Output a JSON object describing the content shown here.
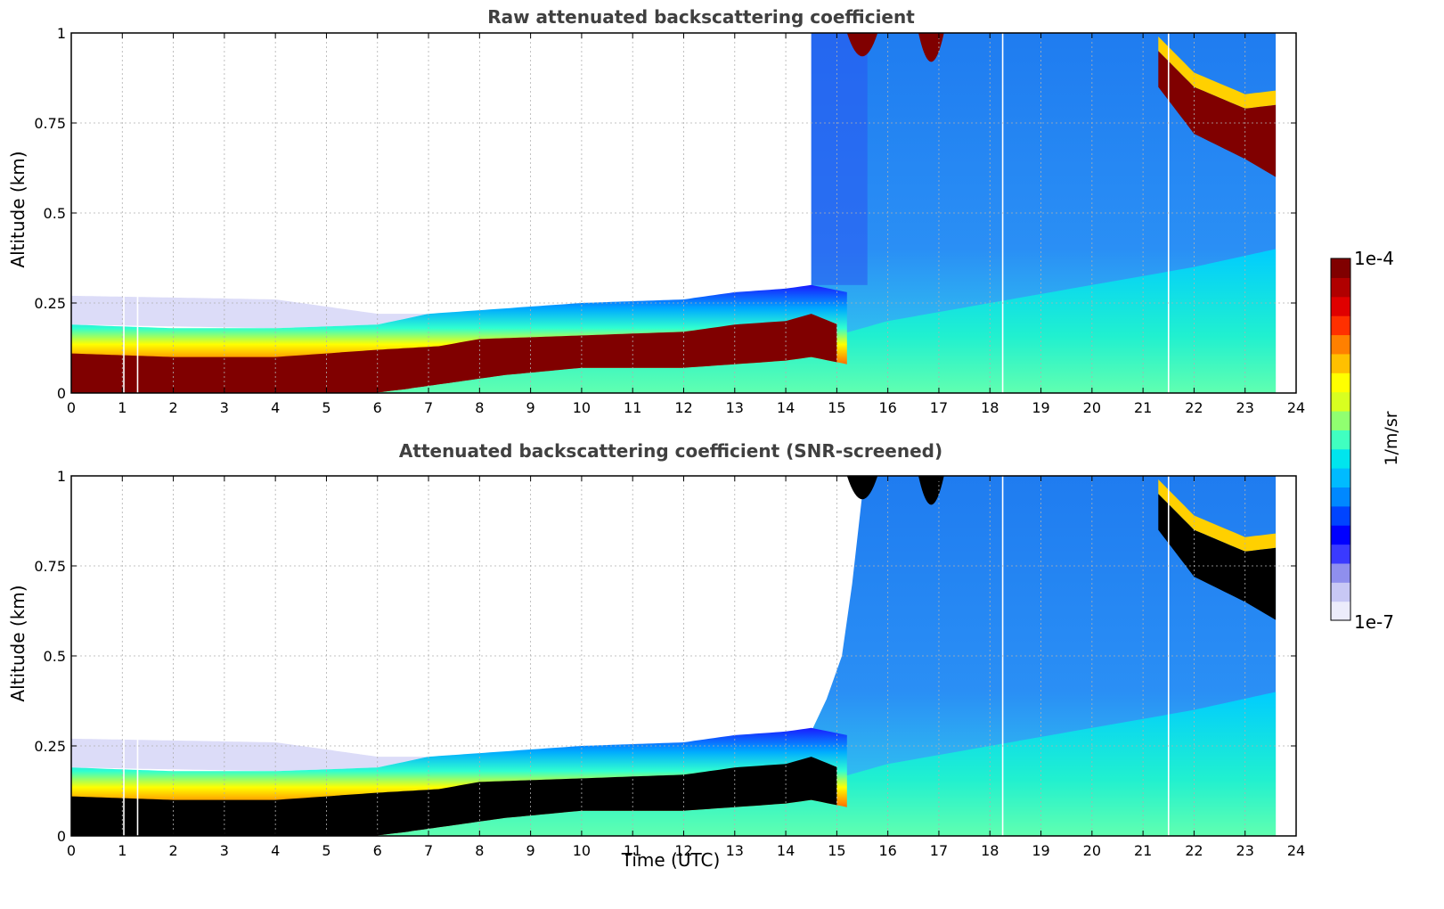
{
  "chart_data": [
    {
      "type": "heatmap",
      "title": "Raw attenuated backscattering coefficient",
      "xlabel": "",
      "ylabel": "Altitude (km)",
      "xlim": [
        0,
        24
      ],
      "ylim": [
        0,
        1
      ],
      "x_ticks": [
        "0",
        "1",
        "2",
        "3",
        "4",
        "5",
        "6",
        "7",
        "8",
        "9",
        "10",
        "11",
        "12",
        "13",
        "14",
        "15",
        "16",
        "17",
        "18",
        "19",
        "20",
        "21",
        "22",
        "23",
        "24"
      ],
      "y_ticks": [
        "0",
        "0.25",
        "0.5",
        "0.75",
        "1"
      ],
      "y_tick_values": [
        0,
        0.25,
        0.5,
        0.75,
        1
      ],
      "grid": true,
      "screened": false,
      "data_end_time": 23.6,
      "layer_top_km": [
        [
          0,
          0.19
        ],
        [
          2,
          0.18
        ],
        [
          4,
          0.18
        ],
        [
          6,
          0.19
        ],
        [
          7,
          0.22
        ],
        [
          8,
          0.23
        ],
        [
          10,
          0.25
        ],
        [
          12,
          0.26
        ],
        [
          13,
          0.28
        ],
        [
          14,
          0.29
        ],
        [
          14.5,
          0.3
        ],
        [
          15.2,
          0.28
        ]
      ],
      "layer_core_top_km": [
        [
          0,
          0.11
        ],
        [
          2,
          0.1
        ],
        [
          4,
          0.1
        ],
        [
          6,
          0.12
        ],
        [
          7.2,
          0.13
        ],
        [
          8,
          0.15
        ],
        [
          10,
          0.16
        ],
        [
          12,
          0.17
        ],
        [
          13,
          0.19
        ],
        [
          14,
          0.2
        ],
        [
          14.5,
          0.22
        ],
        [
          15.2,
          0.18
        ]
      ],
      "layer_core_bottom_km": [
        [
          0,
          0
        ],
        [
          5.9,
          0
        ],
        [
          6.5,
          0.01
        ],
        [
          7.5,
          0.03
        ],
        [
          8.5,
          0.05
        ],
        [
          10,
          0.07
        ],
        [
          12,
          0.07
        ],
        [
          13,
          0.08
        ],
        [
          14,
          0.09
        ],
        [
          14.5,
          0.1
        ],
        [
          15.2,
          0.08
        ]
      ],
      "upper_cloud": {
        "start": 21.3,
        "end": 23.6,
        "top_km": [
          [
            21.3,
            0.95
          ],
          [
            22,
            0.85
          ],
          [
            23,
            0.79
          ],
          [
            23.6,
            0.8
          ]
        ],
        "bottom_km": [
          [
            21.3,
            0.85
          ],
          [
            22,
            0.72
          ],
          [
            23,
            0.65
          ],
          [
            23.6,
            0.6
          ]
        ]
      },
      "gaps_utc": [
        1.03,
        1.3,
        18.25,
        21.5
      ]
    },
    {
      "type": "heatmap",
      "title": "Attenuated backscattering coefficient (SNR-screened)",
      "xlabel": "Time (UTC)",
      "ylabel": "Altitude (km)",
      "xlim": [
        0,
        24
      ],
      "ylim": [
        0,
        1
      ],
      "x_ticks": [
        "0",
        "1",
        "2",
        "3",
        "4",
        "5",
        "6",
        "7",
        "8",
        "9",
        "10",
        "11",
        "12",
        "13",
        "14",
        "15",
        "16",
        "17",
        "18",
        "19",
        "20",
        "21",
        "22",
        "23",
        "24"
      ],
      "y_ticks": [
        "0",
        "0.25",
        "0.5",
        "0.75",
        "1"
      ],
      "y_tick_values": [
        0,
        0.25,
        0.5,
        0.75,
        1
      ],
      "grid": true,
      "screened": true,
      "data_end_time": 23.6,
      "screen_boundary_km": [
        [
          14.4,
          0.26
        ],
        [
          14.8,
          0.38
        ],
        [
          15.1,
          0.5
        ],
        [
          15.3,
          0.7
        ],
        [
          15.5,
          0.95
        ],
        [
          15.6,
          1.0
        ]
      ],
      "layer_top_km": [
        [
          0,
          0.19
        ],
        [
          2,
          0.18
        ],
        [
          4,
          0.18
        ],
        [
          6,
          0.19
        ],
        [
          7,
          0.22
        ],
        [
          8,
          0.23
        ],
        [
          10,
          0.25
        ],
        [
          12,
          0.26
        ],
        [
          13,
          0.28
        ],
        [
          14,
          0.29
        ],
        [
          14.5,
          0.3
        ],
        [
          15.2,
          0.28
        ]
      ],
      "layer_core_top_km": [
        [
          0,
          0.11
        ],
        [
          2,
          0.1
        ],
        [
          4,
          0.1
        ],
        [
          6,
          0.12
        ],
        [
          7.2,
          0.13
        ],
        [
          8,
          0.15
        ],
        [
          10,
          0.16
        ],
        [
          12,
          0.17
        ],
        [
          13,
          0.19
        ],
        [
          14,
          0.2
        ],
        [
          14.5,
          0.22
        ],
        [
          15.2,
          0.18
        ]
      ],
      "layer_core_bottom_km": [
        [
          0,
          0
        ],
        [
          5.9,
          0
        ],
        [
          6.5,
          0.01
        ],
        [
          7.5,
          0.03
        ],
        [
          8.5,
          0.05
        ],
        [
          10,
          0.07
        ],
        [
          12,
          0.07
        ],
        [
          13,
          0.08
        ],
        [
          14,
          0.09
        ],
        [
          14.5,
          0.1
        ],
        [
          15.2,
          0.08
        ]
      ],
      "upper_cloud": {
        "start": 21.3,
        "end": 23.6,
        "top_km": [
          [
            21.3,
            0.95
          ],
          [
            22,
            0.85
          ],
          [
            23,
            0.79
          ],
          [
            23.6,
            0.8
          ]
        ],
        "bottom_km": [
          [
            21.3,
            0.85
          ],
          [
            22,
            0.72
          ],
          [
            23,
            0.65
          ],
          [
            23.6,
            0.6
          ]
        ]
      },
      "gaps_utc": [
        1.03,
        1.3,
        18.25,
        21.5
      ]
    }
  ],
  "colorbar": {
    "max_label": "1e-4",
    "min_label": "1e-7",
    "unit_label": "1/m/sr",
    "colors": [
      "#ececfb",
      "#c8c8f5",
      "#8f8fee",
      "#3a3aff",
      "#0000ff",
      "#0044ff",
      "#0088ff",
      "#00bbff",
      "#00e5ee",
      "#40ffc0",
      "#90ff70",
      "#d8ff20",
      "#ffff00",
      "#ffc000",
      "#ff8000",
      "#ff3000",
      "#e00000",
      "#b00000",
      "#800000"
    ]
  },
  "colors": {
    "axis": "#000000",
    "grid": "#b0b0b0",
    "title": "#404040",
    "saturated_raw": "#800000",
    "saturated_screened": "#000000",
    "gap": "#ffffff"
  }
}
